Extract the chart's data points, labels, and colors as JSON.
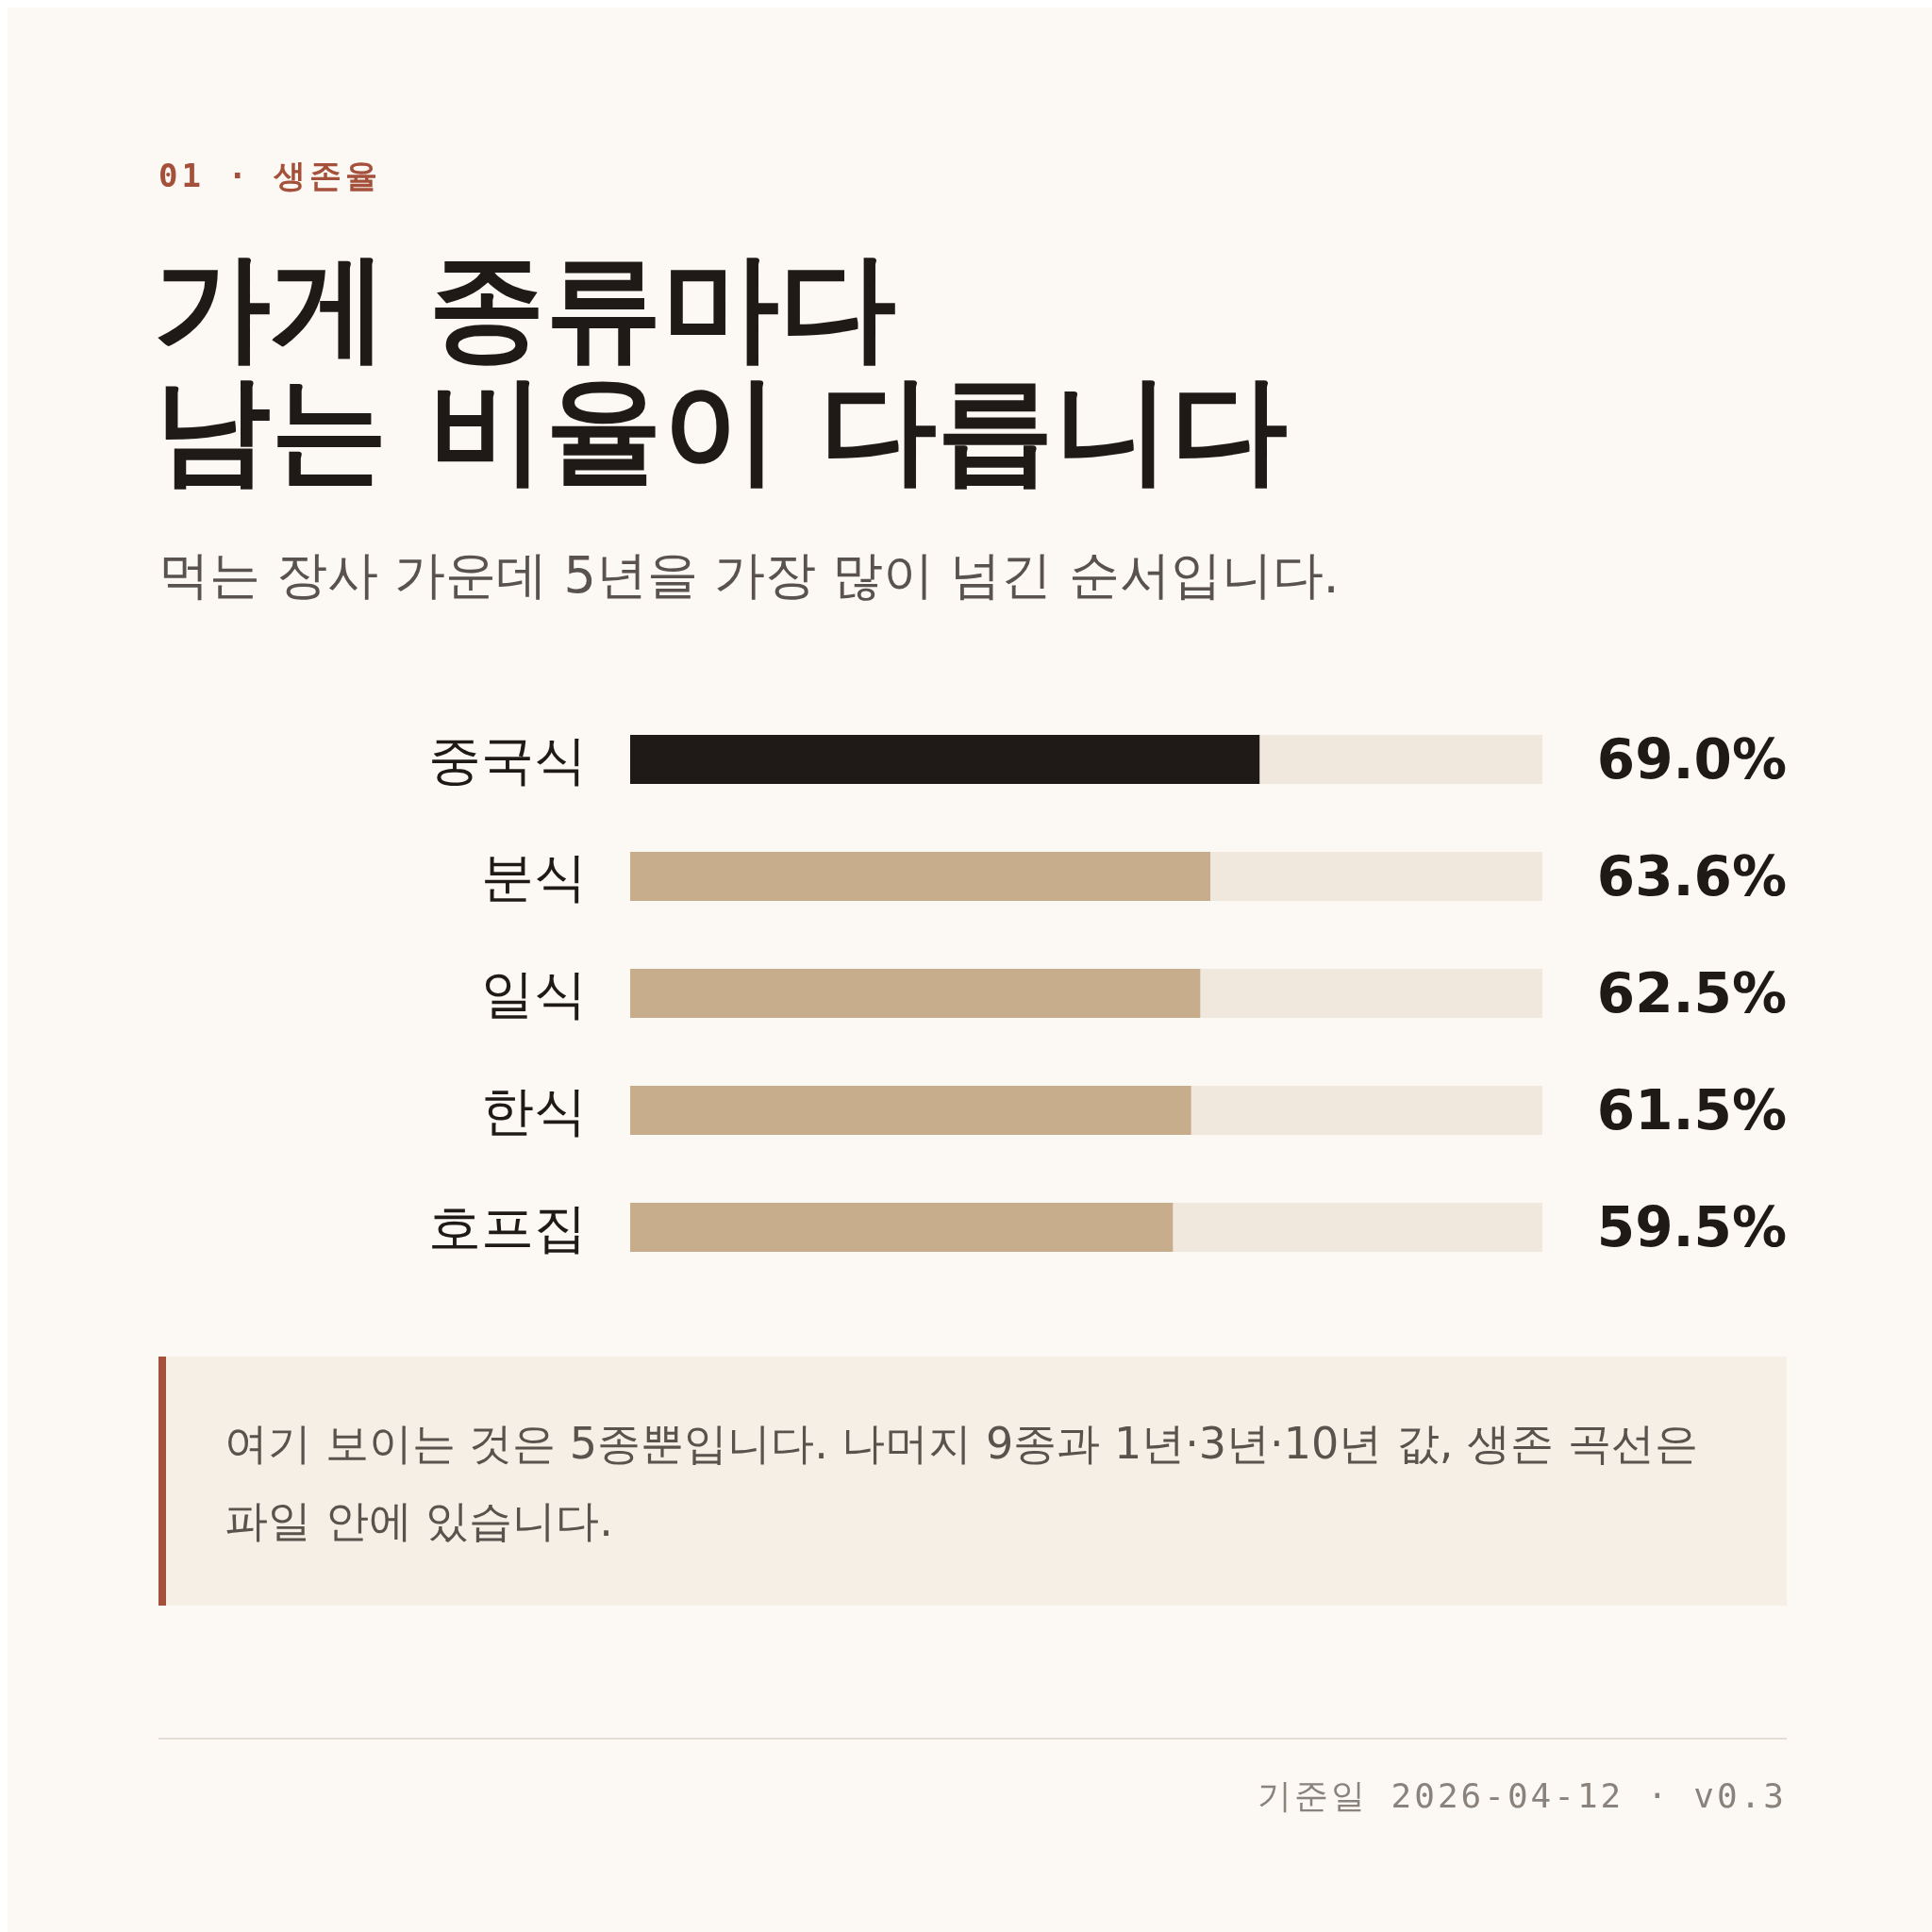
{
  "chart_data": {
    "type": "bar",
    "orientation": "horizontal",
    "title": "가게 종류마다\n남는 비율이 다릅니다",
    "subtitle": "먹는 장사 가운데 5년을 가장 많이 넘긴 순서입니다.",
    "categories": [
      "중국식",
      "분식",
      "일식",
      "한식",
      "호프집"
    ],
    "values": [
      69.0,
      63.6,
      62.5,
      61.5,
      59.5
    ],
    "colors": [
      "#1f1a17",
      "#c8ad8c",
      "#c8ad8c",
      "#c8ad8c",
      "#c8ad8c"
    ],
    "value_labels": [
      "69.0%",
      "63.6%",
      "62.5%",
      "61.5%",
      "59.5%"
    ],
    "xlim": [
      0,
      100
    ],
    "tick_labels": "y",
    "annotations": [
      "01 · 생존율",
      "여기 보이는 것은 5종뿐입니다. 나머지 9종과 1년·3년·10년 값, 생존 곡선은 파일 안에 있습니다.",
      "기준일 2026-04-12 · v0.3"
    ]
  }
}
